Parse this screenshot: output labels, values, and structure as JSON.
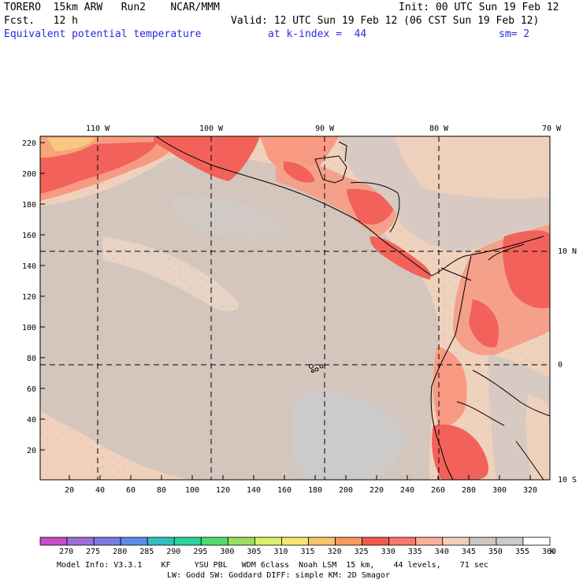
{
  "header": {
    "line1_left": "TORERO  15km ARW   Run2    NCAR/MMM",
    "line1_right": "Init: 00 UTC Sun 19 Feb 12",
    "line2_left": "Fcst.   12 h",
    "line2_right": "Valid: 12 UTC Sun 19 Feb 12 (06 CST Sun 19 Feb 12)",
    "line3_left": "Equivalent potential temperature",
    "line3_mid": "at k-index =  44",
    "line3_right": "sm= 2"
  },
  "map": {
    "top_lon_labels": [
      "110 W",
      "100 W",
      "90 W",
      "80 W",
      "70 W"
    ],
    "right_lat_labels": [
      "10 N",
      "0",
      "10 S"
    ],
    "y_ticks": [
      "220",
      "200",
      "180",
      "160",
      "140",
      "120",
      "100",
      "80",
      "60",
      "40",
      "20"
    ],
    "x_ticks": [
      "20",
      "40",
      "60",
      "80",
      "100",
      "120",
      "140",
      "160",
      "180",
      "200",
      "220",
      "240",
      "260",
      "280",
      "300",
      "320"
    ]
  },
  "colorbar": {
    "labels": [
      "270",
      "275",
      "280",
      "285",
      "290",
      "295",
      "300",
      "305",
      "310",
      "315",
      "320",
      "325",
      "330",
      "335",
      "340",
      "345",
      "350",
      "355",
      "360"
    ],
    "unit": "K",
    "colors": [
      "#c84bc8",
      "#9f6ed9",
      "#7a7ae6",
      "#5a8be8",
      "#2fbfbf",
      "#2bd3a0",
      "#4fdc6a",
      "#9be05a",
      "#d8f06a",
      "#f5e670",
      "#f7c46a",
      "#f89a5a",
      "#f25a4a",
      "#f8786a",
      "#f8b09a",
      "#f0d2bc",
      "#d0c8c0",
      "#cccccc",
      "#ffffff"
    ]
  },
  "footer": {
    "line1": "Model Info: V3.3.1    KF     YSU PBL   WDM 6class  Noah LSM  15 km,    44 levels,    71 sec",
    "line2": "LW: Godd SW: Goddard DIFF: simple KM: 2D Smagor"
  }
}
